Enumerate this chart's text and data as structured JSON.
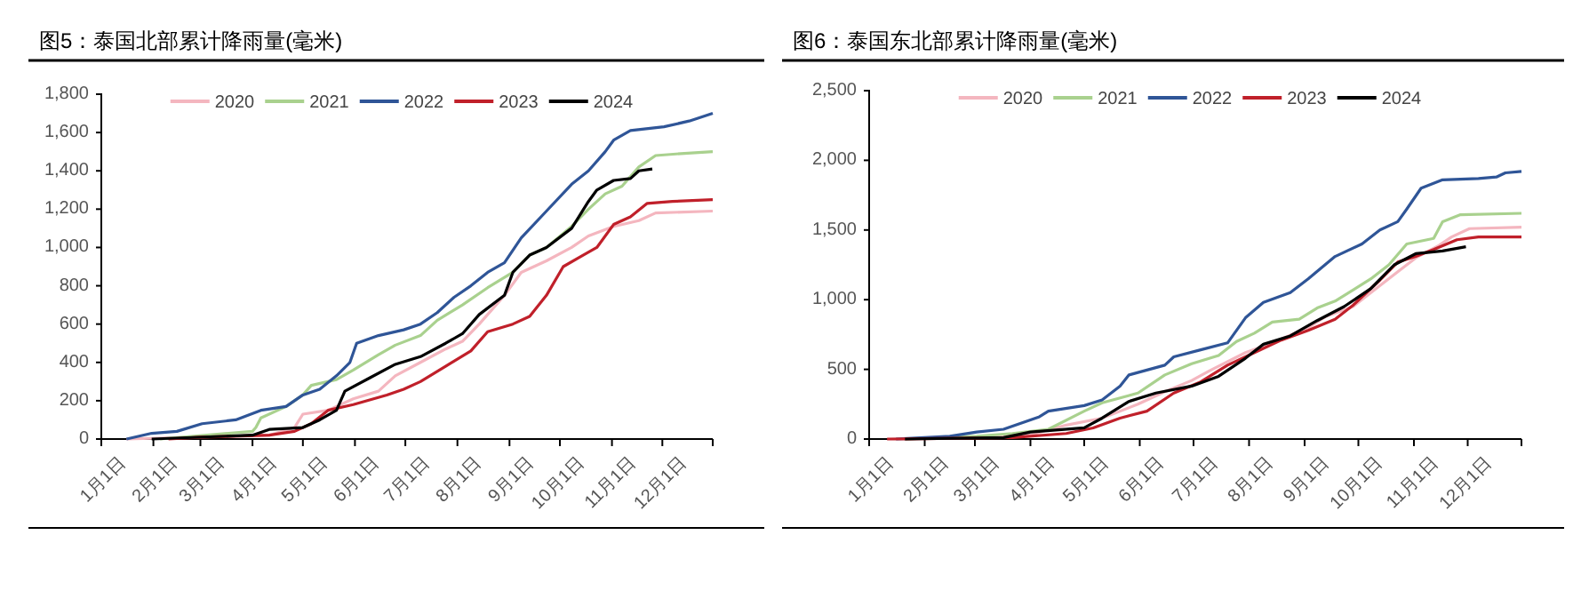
{
  "chart_data": [
    {
      "type": "line",
      "title": "图5：泰国北部累计降雨量(毫米)",
      "legend": "top",
      "xlim": [
        "--01-01",
        "--12-31"
      ],
      "xticks": [
        {
          "value": "--01-01",
          "label": "1月1日"
        },
        {
          "value": "--02-01",
          "label": "2月1日"
        },
        {
          "value": "--03-01",
          "label": "3月1日"
        },
        {
          "value": "--04-01",
          "label": "4月1日"
        },
        {
          "value": "--05-01",
          "label": "5月1日"
        },
        {
          "value": "--06-01",
          "label": "6月1日"
        },
        {
          "value": "--07-01",
          "label": "7月1日"
        },
        {
          "value": "--08-01",
          "label": "8月1日"
        },
        {
          "value": "--09-01",
          "label": "9月1日"
        },
        {
          "value": "--10-01",
          "label": "10月1日"
        },
        {
          "value": "--11-01",
          "label": "11月1日"
        },
        {
          "value": "--12-01",
          "label": "12月1日"
        },
        {
          "value": "--12-31",
          "label": null
        }
      ],
      "ylim": [
        0,
        1800
      ],
      "yticks": [
        0,
        200,
        400,
        600,
        800,
        {
          "value": 1000,
          "label": "1,000"
        },
        {
          "value": 1200,
          "label": "1,200"
        },
        {
          "value": 1400,
          "label": "1,400"
        },
        {
          "value": 1600,
          "label": "1,600"
        },
        {
          "value": 1800,
          "label": "1,800"
        }
      ],
      "series": [
        {
          "name": "2020",
          "color": "#f4b6bf",
          "x": [
            "--01-16",
            "--04-11",
            "--04-26",
            "--05-01",
            "--05-16",
            "--05-31",
            "--06-15",
            "--06-25",
            "--07-10",
            "--07-25",
            "--08-04",
            "--08-14",
            "--08-29",
            "--09-08",
            "--09-23",
            "--10-08",
            "--10-18",
            "--11-02",
            "--11-17",
            "--11-27",
            "--12-31"
          ],
          "values": [
            0,
            20,
            60,
            130,
            150,
            210,
            250,
            330,
            400,
            470,
            510,
            600,
            750,
            870,
            930,
            1000,
            1060,
            1110,
            1140,
            1180,
            1190
          ]
        },
        {
          "name": "2021",
          "color": "#a9d18e",
          "x": [
            "--02-05",
            "--04-01",
            "--04-03",
            "--04-06",
            "--04-21",
            "--05-01",
            "--05-06",
            "--05-21",
            "--05-31",
            "--06-15",
            "--06-25",
            "--07-10",
            "--07-20",
            "--08-04",
            "--08-19",
            "--09-03",
            "--09-13",
            "--09-23",
            "--10-08",
            "--10-18",
            "--10-28",
            "--11-07",
            "--11-17",
            "--11-27",
            "--12-12",
            "--12-31"
          ],
          "values": [
            0,
            40,
            60,
            110,
            170,
            230,
            280,
            310,
            360,
            440,
            490,
            540,
            620,
            700,
            790,
            870,
            960,
            1000,
            1110,
            1200,
            1280,
            1320,
            1420,
            1480,
            1490,
            1500
          ]
        },
        {
          "name": "2022",
          "color": "#2f5597",
          "x": [
            "--01-16",
            "--01-31",
            "--02-15",
            "--03-02",
            "--03-22",
            "--04-06",
            "--04-21",
            "--05-01",
            "--05-11",
            "--05-21",
            "--05-29",
            "--06-02",
            "--06-15",
            "--06-30",
            "--07-10",
            "--07-20",
            "--07-30",
            "--08-09",
            "--08-19",
            "--08-29",
            "--09-08",
            "--09-23",
            "--10-08",
            "--10-18",
            "--10-28",
            "--11-02",
            "--11-12",
            "--12-02",
            "--12-17",
            "--12-31"
          ],
          "values": [
            0,
            30,
            40,
            80,
            100,
            150,
            170,
            230,
            260,
            330,
            400,
            500,
            540,
            570,
            600,
            660,
            740,
            800,
            870,
            920,
            1050,
            1190,
            1330,
            1400,
            1500,
            1560,
            1610,
            1630,
            1660,
            1700
          ]
        },
        {
          "name": "2023",
          "color": "#c0202a",
          "x": [
            "--02-10",
            "--03-02",
            "--04-11",
            "--04-26",
            "--05-06",
            "--05-16",
            "--05-31",
            "--06-20",
            "--06-30",
            "--07-10",
            "--07-25",
            "--08-09",
            "--08-19",
            "--09-03",
            "--09-13",
            "--09-23",
            "--10-03",
            "--10-13",
            "--10-23",
            "--11-02",
            "--11-12",
            "--11-22",
            "--12-07",
            "--12-31"
          ],
          "values": [
            0,
            10,
            20,
            40,
            80,
            150,
            180,
            230,
            260,
            300,
            380,
            460,
            560,
            600,
            640,
            750,
            900,
            950,
            1000,
            1120,
            1160,
            1230,
            1240,
            1250
          ]
        },
        {
          "name": "2024",
          "color": "#000000",
          "x": [
            "--01-31",
            "--04-01",
            "--04-11",
            "--05-01",
            "--05-11",
            "--05-21",
            "--05-26",
            "--06-10",
            "--06-25",
            "--07-10",
            "--07-25",
            "--08-04",
            "--08-14",
            "--08-29",
            "--09-03",
            "--09-13",
            "--09-23",
            "--10-08",
            "--10-18",
            "--10-23",
            "--11-02",
            "--11-12",
            "--11-17",
            "--11-25"
          ],
          "values": [
            0,
            20,
            50,
            60,
            100,
            150,
            250,
            320,
            390,
            430,
            500,
            550,
            650,
            750,
            870,
            960,
            1000,
            1100,
            1240,
            1300,
            1350,
            1360,
            1400,
            1410
          ]
        }
      ]
    },
    {
      "type": "line",
      "title": "图6：泰国东北部累计降雨量(毫米)",
      "legend": "top",
      "xlim": [
        "--01-01",
        "--12-31"
      ],
      "xticks": [
        {
          "value": "--01-01",
          "label": "1月1日"
        },
        {
          "value": "--02-01",
          "label": "2月1日"
        },
        {
          "value": "--03-01",
          "label": "3月1日"
        },
        {
          "value": "--04-01",
          "label": "4月1日"
        },
        {
          "value": "--05-01",
          "label": "5月1日"
        },
        {
          "value": "--06-01",
          "label": "6月1日"
        },
        {
          "value": "--07-01",
          "label": "7月1日"
        },
        {
          "value": "--08-01",
          "label": "8月1日"
        },
        {
          "value": "--09-01",
          "label": "9月1日"
        },
        {
          "value": "--10-01",
          "label": "10月1日"
        },
        {
          "value": "--11-01",
          "label": "11月1日"
        },
        {
          "value": "--12-01",
          "label": "12月1日"
        },
        {
          "value": "--12-31",
          "label": null
        }
      ],
      "ylim": [
        0,
        2500
      ],
      "yticks": [
        0,
        500,
        {
          "value": 1000,
          "label": "1,000"
        },
        {
          "value": 1500,
          "label": "1,500"
        },
        {
          "value": 2000,
          "label": "2,000"
        },
        {
          "value": 2500,
          "label": "2,500"
        }
      ],
      "series": [
        {
          "name": "2020",
          "color": "#f4b6bf",
          "x": [
            "--01-21",
            "--04-01",
            "--04-21",
            "--05-11",
            "--05-31",
            "--06-15",
            "--06-30",
            "--07-10",
            "--07-30",
            "--08-14",
            "--09-03",
            "--09-13",
            "--09-28",
            "--10-08",
            "--10-23",
            "--11-02",
            "--11-15",
            "--11-22",
            "--12-02",
            "--12-31"
          ],
          "values": [
            0,
            30,
            100,
            150,
            250,
            340,
            420,
            490,
            620,
            690,
            800,
            880,
            950,
            1050,
            1200,
            1300,
            1390,
            1450,
            1510,
            1520
          ]
        },
        {
          "name": "2021",
          "color": "#a9d18e",
          "x": [
            "--01-21",
            "--03-02",
            "--03-22",
            "--04-11",
            "--05-01",
            "--05-11",
            "--05-31",
            "--06-15",
            "--06-30",
            "--07-15",
            "--07-25",
            "--08-04",
            "--08-14",
            "--08-29",
            "--09-08",
            "--09-18",
            "--10-08",
            "--10-18",
            "--10-28",
            "--11-12",
            "--11-17",
            "--11-27",
            "--12-31"
          ],
          "values": [
            0,
            20,
            40,
            70,
            200,
            260,
            330,
            460,
            540,
            600,
            700,
            760,
            840,
            860,
            940,
            990,
            1150,
            1250,
            1400,
            1440,
            1560,
            1610,
            1620
          ]
        },
        {
          "name": "2022",
          "color": "#2f5597",
          "x": [
            "--01-16",
            "--02-15",
            "--03-02",
            "--03-17",
            "--04-06",
            "--04-11",
            "--05-01",
            "--05-11",
            "--05-21",
            "--05-26",
            "--06-15",
            "--06-20",
            "--07-05",
            "--07-20",
            "--07-30",
            "--08-09",
            "--08-24",
            "--09-03",
            "--09-18",
            "--10-03",
            "--10-13",
            "--10-23",
            "--10-28",
            "--11-05",
            "--11-17",
            "--12-07",
            "--12-17",
            "--12-22",
            "--12-31"
          ],
          "values": [
            0,
            20,
            50,
            70,
            160,
            200,
            240,
            280,
            380,
            460,
            530,
            590,
            640,
            690,
            870,
            980,
            1050,
            1150,
            1310,
            1400,
            1500,
            1560,
            1650,
            1800,
            1860,
            1870,
            1880,
            1910,
            1920
          ]
        },
        {
          "name": "2023",
          "color": "#c0202a",
          "x": [
            "--01-11",
            "--03-22",
            "--04-21",
            "--05-06",
            "--05-21",
            "--06-05",
            "--06-20",
            "--07-05",
            "--07-20",
            "--08-04",
            "--08-19",
            "--09-03",
            "--09-18",
            "--09-28",
            "--10-13",
            "--10-23",
            "--11-02",
            "--11-12",
            "--11-25",
            "--12-07",
            "--12-31"
          ],
          "values": [
            0,
            10,
            40,
            80,
            150,
            200,
            330,
            410,
            530,
            620,
            710,
            780,
            860,
            960,
            1140,
            1270,
            1310,
            1360,
            1430,
            1450,
            1450
          ]
        },
        {
          "name": "2024",
          "color": "#000000",
          "x": [
            "--01-21",
            "--03-17",
            "--04-01",
            "--05-01",
            "--05-11",
            "--05-26",
            "--06-10",
            "--06-30",
            "--07-15",
            "--07-30",
            "--08-09",
            "--08-24",
            "--09-08",
            "--09-23",
            "--10-08",
            "--10-21",
            "--11-02",
            "--11-17",
            "--11-30"
          ],
          "values": [
            0,
            10,
            50,
            80,
            150,
            270,
            330,
            380,
            450,
            580,
            680,
            740,
            850,
            950,
            1080,
            1250,
            1330,
            1350,
            1380
          ]
        }
      ]
    }
  ]
}
